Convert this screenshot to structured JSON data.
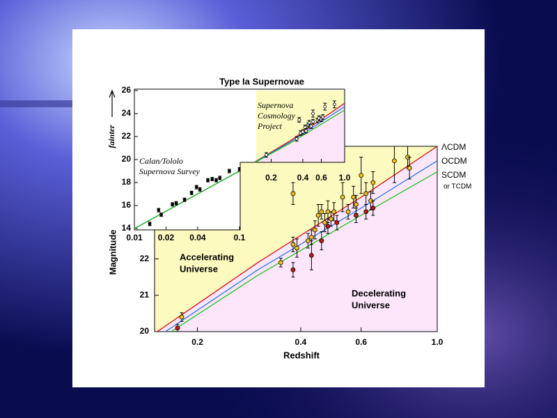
{
  "chart_data": [
    {
      "type": "scatter",
      "xlabel": "Redshift",
      "ylabel": "Magnitude",
      "log_x": true,
      "xlim": [
        0.15,
        1.0
      ],
      "ylim": [
        20,
        25.1
      ],
      "xticks": [
        0.2,
        0.4,
        0.6,
        {
          "value": 1.0,
          "label": "1.0"
        }
      ],
      "yticks": [
        20,
        21,
        22
      ],
      "series": [
        {
          "type": "line",
          "name": "ΛCDM",
          "color": "#d01010",
          "x": [
            0.15,
            0.3,
            0.6,
            1.0
          ],
          "values": [
            19.95,
            21.9,
            23.7,
            25.1
          ]
        },
        {
          "type": "line",
          "name": "OCDM",
          "color": "#2a78e0",
          "x": [
            0.15,
            0.3,
            0.6,
            1.0
          ],
          "values": [
            19.8,
            21.7,
            23.4,
            24.7
          ]
        },
        {
          "type": "line",
          "name": "SCDM",
          "color": "#20c020",
          "x": [
            0.15,
            0.3,
            0.6,
            1.0
          ],
          "values": [
            19.7,
            21.55,
            23.2,
            24.4
          ]
        },
        {
          "type": "scatter",
          "color": "#f0c020",
          "x": [
            0.18,
            0.35,
            0.38,
            0.39,
            0.38,
            0.42,
            0.43,
            0.44,
            0.45,
            0.46,
            0.47,
            0.48,
            0.49,
            0.5,
            0.53,
            0.55,
            0.57,
            0.6,
            0.58,
            0.62,
            0.64,
            0.65,
            0.75,
            0.82,
            0.83
          ],
          "values": [
            20.4,
            21.9,
            22.4,
            22.3,
            23.8,
            22.5,
            22.6,
            22.8,
            23.2,
            23.3,
            23.0,
            23.3,
            23.1,
            23.3,
            23.7,
            23.3,
            23.7,
            24.3,
            23.5,
            23.8,
            23.6,
            24.1,
            24.7,
            24.8,
            24.5
          ],
          "errors": [
            0.12,
            0.12,
            0.2,
            0.25,
            0.3,
            0.2,
            0.2,
            0.25,
            0.3,
            0.2,
            0.25,
            0.3,
            0.2,
            0.25,
            0.4,
            0.2,
            0.3,
            0.5,
            0.25,
            0.3,
            0.25,
            0.3,
            0.6,
            0.3,
            0.3
          ]
        },
        {
          "type": "scatter",
          "color": "#c01818",
          "x": [
            0.175,
            0.38,
            0.43,
            0.46,
            0.48,
            0.51,
            0.58,
            0.62,
            0.65
          ],
          "values": [
            20.1,
            21.7,
            22.1,
            22.5,
            22.9,
            23.0,
            23.2,
            23.3,
            23.4
          ],
          "errors": [
            0.1,
            0.2,
            0.4,
            0.25,
            0.2,
            0.2,
            0.2,
            0.2,
            0.2
          ]
        }
      ],
      "annotations": [
        [
          "Accelerating",
          "Universe"
        ],
        [
          "Decelerating",
          "Universe"
        ],
        [
          "or TCDM"
        ]
      ]
    },
    {
      "type": "scatter",
      "title": "Type Ia Supernovae",
      "ylabel": "fainter",
      "log_x": true,
      "xlim": [
        0.01,
        1.0
      ],
      "ylim": [
        14,
        26
      ],
      "xticks": [
        0.01,
        0.02,
        0.04,
        0.1,
        0.2,
        0.4,
        0.6,
        {
          "value": 1.0,
          "label": "1.0"
        }
      ],
      "yticks": [
        14,
        16,
        18,
        20,
        22,
        24,
        26
      ],
      "series": [
        {
          "type": "line",
          "color": "#d01010",
          "x": [
            0.01,
            0.1,
            0.3,
            1.0
          ],
          "values": [
            14,
            19,
            21.6,
            24.9
          ]
        },
        {
          "type": "line",
          "color": "#2a78e0",
          "x": [
            0.01,
            0.1,
            0.3,
            1.0
          ],
          "values": [
            14,
            19,
            21.5,
            24.6
          ]
        },
        {
          "type": "line",
          "color": "#20c020",
          "x": [
            0.01,
            0.1,
            0.3,
            1.0
          ],
          "values": [
            14,
            19,
            21.4,
            24.3
          ]
        },
        {
          "type": "scatter",
          "color": "#000000",
          "x": [
            0.014,
            0.017,
            0.018,
            0.023,
            0.025,
            0.03,
            0.035,
            0.039,
            0.042,
            0.05,
            0.055,
            0.06,
            0.065,
            0.08,
            0.1
          ],
          "values": [
            14.4,
            15.6,
            15.2,
            16.1,
            16.2,
            16.5,
            17.1,
            17.6,
            17.4,
            18.2,
            18.3,
            18.2,
            18.4,
            19.0,
            19.15
          ],
          "errors": [
            0.15,
            0.15,
            0.15,
            0.15,
            0.15,
            0.15,
            0.15,
            0.15,
            0.15,
            0.15,
            0.15,
            0.15,
            0.15,
            0.15,
            0.15
          ]
        },
        {
          "type": "scatter",
          "color": "#ffffff",
          "x": [
            0.18,
            0.35,
            0.37,
            0.38,
            0.4,
            0.42,
            0.43,
            0.45,
            0.46,
            0.48,
            0.5,
            0.5,
            0.55,
            0.57,
            0.6,
            0.62,
            0.65,
            0.8
          ],
          "values": [
            20.4,
            21.8,
            23.45,
            22.3,
            22.4,
            22.8,
            22.5,
            23.0,
            23.2,
            22.9,
            23.3,
            24.0,
            23.4,
            23.6,
            23.5,
            23.7,
            24.6,
            24.8
          ],
          "errors": [
            0.2,
            0.2,
            0.2,
            0.2,
            0.2,
            0.2,
            0.2,
            0.2,
            0.2,
            0.2,
            0.2,
            0.3,
            0.2,
            0.2,
            0.2,
            0.2,
            0.3,
            0.3
          ]
        }
      ],
      "annotations": [
        [
          "Calan/Tololo",
          "Supernova Survey"
        ],
        [
          "Supernova",
          "Cosmology",
          "Project"
        ]
      ]
    }
  ]
}
